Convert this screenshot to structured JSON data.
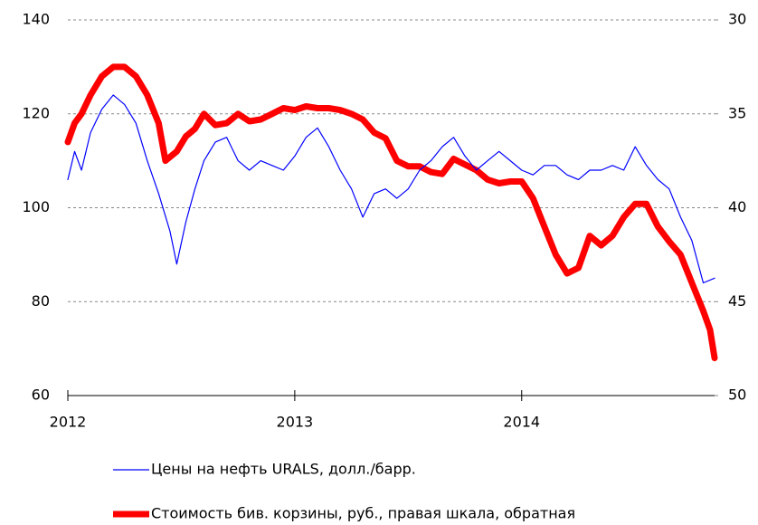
{
  "chart_data": {
    "type": "line",
    "xlim": [
      2012,
      2014.85
    ],
    "xticks": [
      2012,
      2013,
      2014
    ],
    "ylim": [
      60,
      140
    ],
    "yticks": [
      60,
      80,
      100,
      120,
      140
    ],
    "y2lim": [
      50,
      30
    ],
    "y2ticks": [
      30,
      35,
      40,
      45,
      50
    ],
    "grid": true,
    "series": [
      {
        "name": "Цены на нефть URALS, долл./барр.",
        "color": "#0000ff",
        "x": [
          2012.0,
          2012.03,
          2012.06,
          2012.1,
          2012.15,
          2012.2,
          2012.25,
          2012.3,
          2012.35,
          2012.4,
          2012.45,
          2012.48,
          2012.52,
          2012.56,
          2012.6,
          2012.65,
          2012.7,
          2012.75,
          2012.8,
          2012.85,
          2012.9,
          2012.95,
          2013.0,
          2013.05,
          2013.1,
          2013.15,
          2013.2,
          2013.25,
          2013.3,
          2013.35,
          2013.4,
          2013.45,
          2013.5,
          2013.55,
          2013.6,
          2013.65,
          2013.7,
          2013.75,
          2013.8,
          2013.85,
          2013.9,
          2013.95,
          2014.0,
          2014.05,
          2014.1,
          2014.15,
          2014.2,
          2014.25,
          2014.3,
          2014.35,
          2014.4,
          2014.45,
          2014.5,
          2014.55,
          2014.6,
          2014.65,
          2014.7,
          2014.75,
          2014.8,
          2014.85
        ],
        "values": [
          106,
          112,
          108,
          116,
          121,
          124,
          122,
          118,
          110,
          103,
          95,
          88,
          97,
          104,
          110,
          114,
          115,
          110,
          108,
          110,
          109,
          108,
          111,
          115,
          117,
          113,
          108,
          104,
          98,
          103,
          104,
          102,
          104,
          108,
          110,
          113,
          115,
          111,
          108,
          110,
          112,
          110,
          108,
          107,
          109,
          109,
          107,
          106,
          108,
          108,
          109,
          108,
          113,
          109,
          106,
          104,
          98,
          93,
          84,
          85
        ]
      },
      {
        "name": "Стоимость бив. корзины, руб., правая шкала, обратная",
        "color": "#ff0000",
        "axis": "y2",
        "x": [
          2012.0,
          2012.03,
          2012.06,
          2012.1,
          2012.15,
          2012.2,
          2012.25,
          2012.3,
          2012.35,
          2012.4,
          2012.43,
          2012.48,
          2012.52,
          2012.56,
          2012.6,
          2012.65,
          2012.7,
          2012.75,
          2012.8,
          2012.85,
          2012.9,
          2012.95,
          2013.0,
          2013.05,
          2013.1,
          2013.15,
          2013.2,
          2013.25,
          2013.3,
          2013.35,
          2013.4,
          2013.45,
          2013.5,
          2013.55,
          2013.6,
          2013.65,
          2013.7,
          2013.75,
          2013.8,
          2013.85,
          2013.9,
          2013.95,
          2014.0,
          2014.05,
          2014.1,
          2014.15,
          2014.2,
          2014.25,
          2014.3,
          2014.35,
          2014.4,
          2014.45,
          2014.5,
          2014.55,
          2014.6,
          2014.65,
          2014.7,
          2014.75,
          2014.8,
          2014.83,
          2014.85
        ],
        "values": [
          36.5,
          35.5,
          35,
          34,
          33,
          32.5,
          32.5,
          33,
          34,
          35.5,
          37.5,
          37,
          36.2,
          35.8,
          35,
          35.6,
          35.5,
          35,
          35.4,
          35.3,
          35,
          34.7,
          34.8,
          34.6,
          34.7,
          34.7,
          34.8,
          35,
          35.3,
          36,
          36.3,
          37.5,
          37.8,
          37.8,
          38.1,
          38.2,
          37.4,
          37.7,
          38,
          38.5,
          38.7,
          38.6,
          38.6,
          39.5,
          41,
          42.5,
          43.5,
          43.2,
          41.5,
          42,
          41.5,
          40.5,
          39.8,
          39.8,
          41,
          41.8,
          42.5,
          44,
          45.5,
          46.5,
          48
        ]
      }
    ]
  }
}
